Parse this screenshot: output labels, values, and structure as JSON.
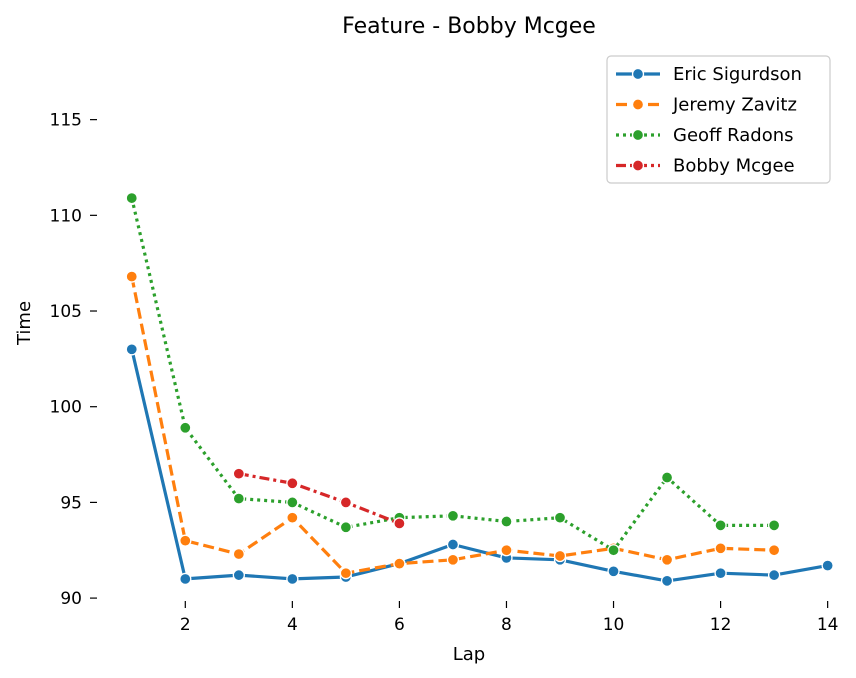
{
  "chart_data": {
    "type": "line",
    "title": "Feature - Bobby Mcgee",
    "xlabel": "Lap",
    "ylabel": "Time",
    "xlim": [
      0.5,
      14.1
    ],
    "ylim": [
      89.9,
      118.9
    ],
    "xticks": [
      2,
      4,
      6,
      8,
      10,
      12,
      14
    ],
    "yticks": [
      90,
      95,
      100,
      105,
      110,
      115
    ],
    "grid": false,
    "legend_position": "top-right",
    "series": [
      {
        "name": "Eric Sigurdson",
        "color": "#1f77b4",
        "dash": "solid",
        "x": [
          1,
          2,
          3,
          4,
          5,
          6,
          7,
          8,
          9,
          10,
          11,
          12,
          13,
          14
        ],
        "values": [
          103.0,
          91.0,
          91.2,
          91.0,
          91.1,
          91.8,
          92.8,
          92.1,
          92.0,
          91.4,
          90.9,
          91.3,
          91.2,
          91.7
        ]
      },
      {
        "name": "Jeremy Zavitz",
        "color": "#ff7f0e",
        "dash": "dashed",
        "x": [
          1,
          2,
          3,
          4,
          5,
          6,
          7,
          8,
          9,
          10,
          11,
          12,
          13
        ],
        "values": [
          106.8,
          93.0,
          92.3,
          94.2,
          91.3,
          91.8,
          92.0,
          92.5,
          92.2,
          92.6,
          92.0,
          92.6,
          92.5
        ]
      },
      {
        "name": "Geoff Radons",
        "color": "#2ca02c",
        "dash": "dotted",
        "x": [
          1,
          2,
          3,
          4,
          5,
          6,
          7,
          8,
          9,
          10,
          11,
          12,
          13
        ],
        "values": [
          110.9,
          98.9,
          95.2,
          95.0,
          93.7,
          94.2,
          94.3,
          94.0,
          94.2,
          92.5,
          96.3,
          93.8,
          93.8
        ]
      },
      {
        "name": "Bobby Mcgee",
        "color": "#d62728",
        "dash": "dashdot",
        "x": [
          3,
          4,
          5,
          6
        ],
        "values": [
          96.5,
          96.0,
          95.0,
          93.9
        ]
      }
    ]
  }
}
